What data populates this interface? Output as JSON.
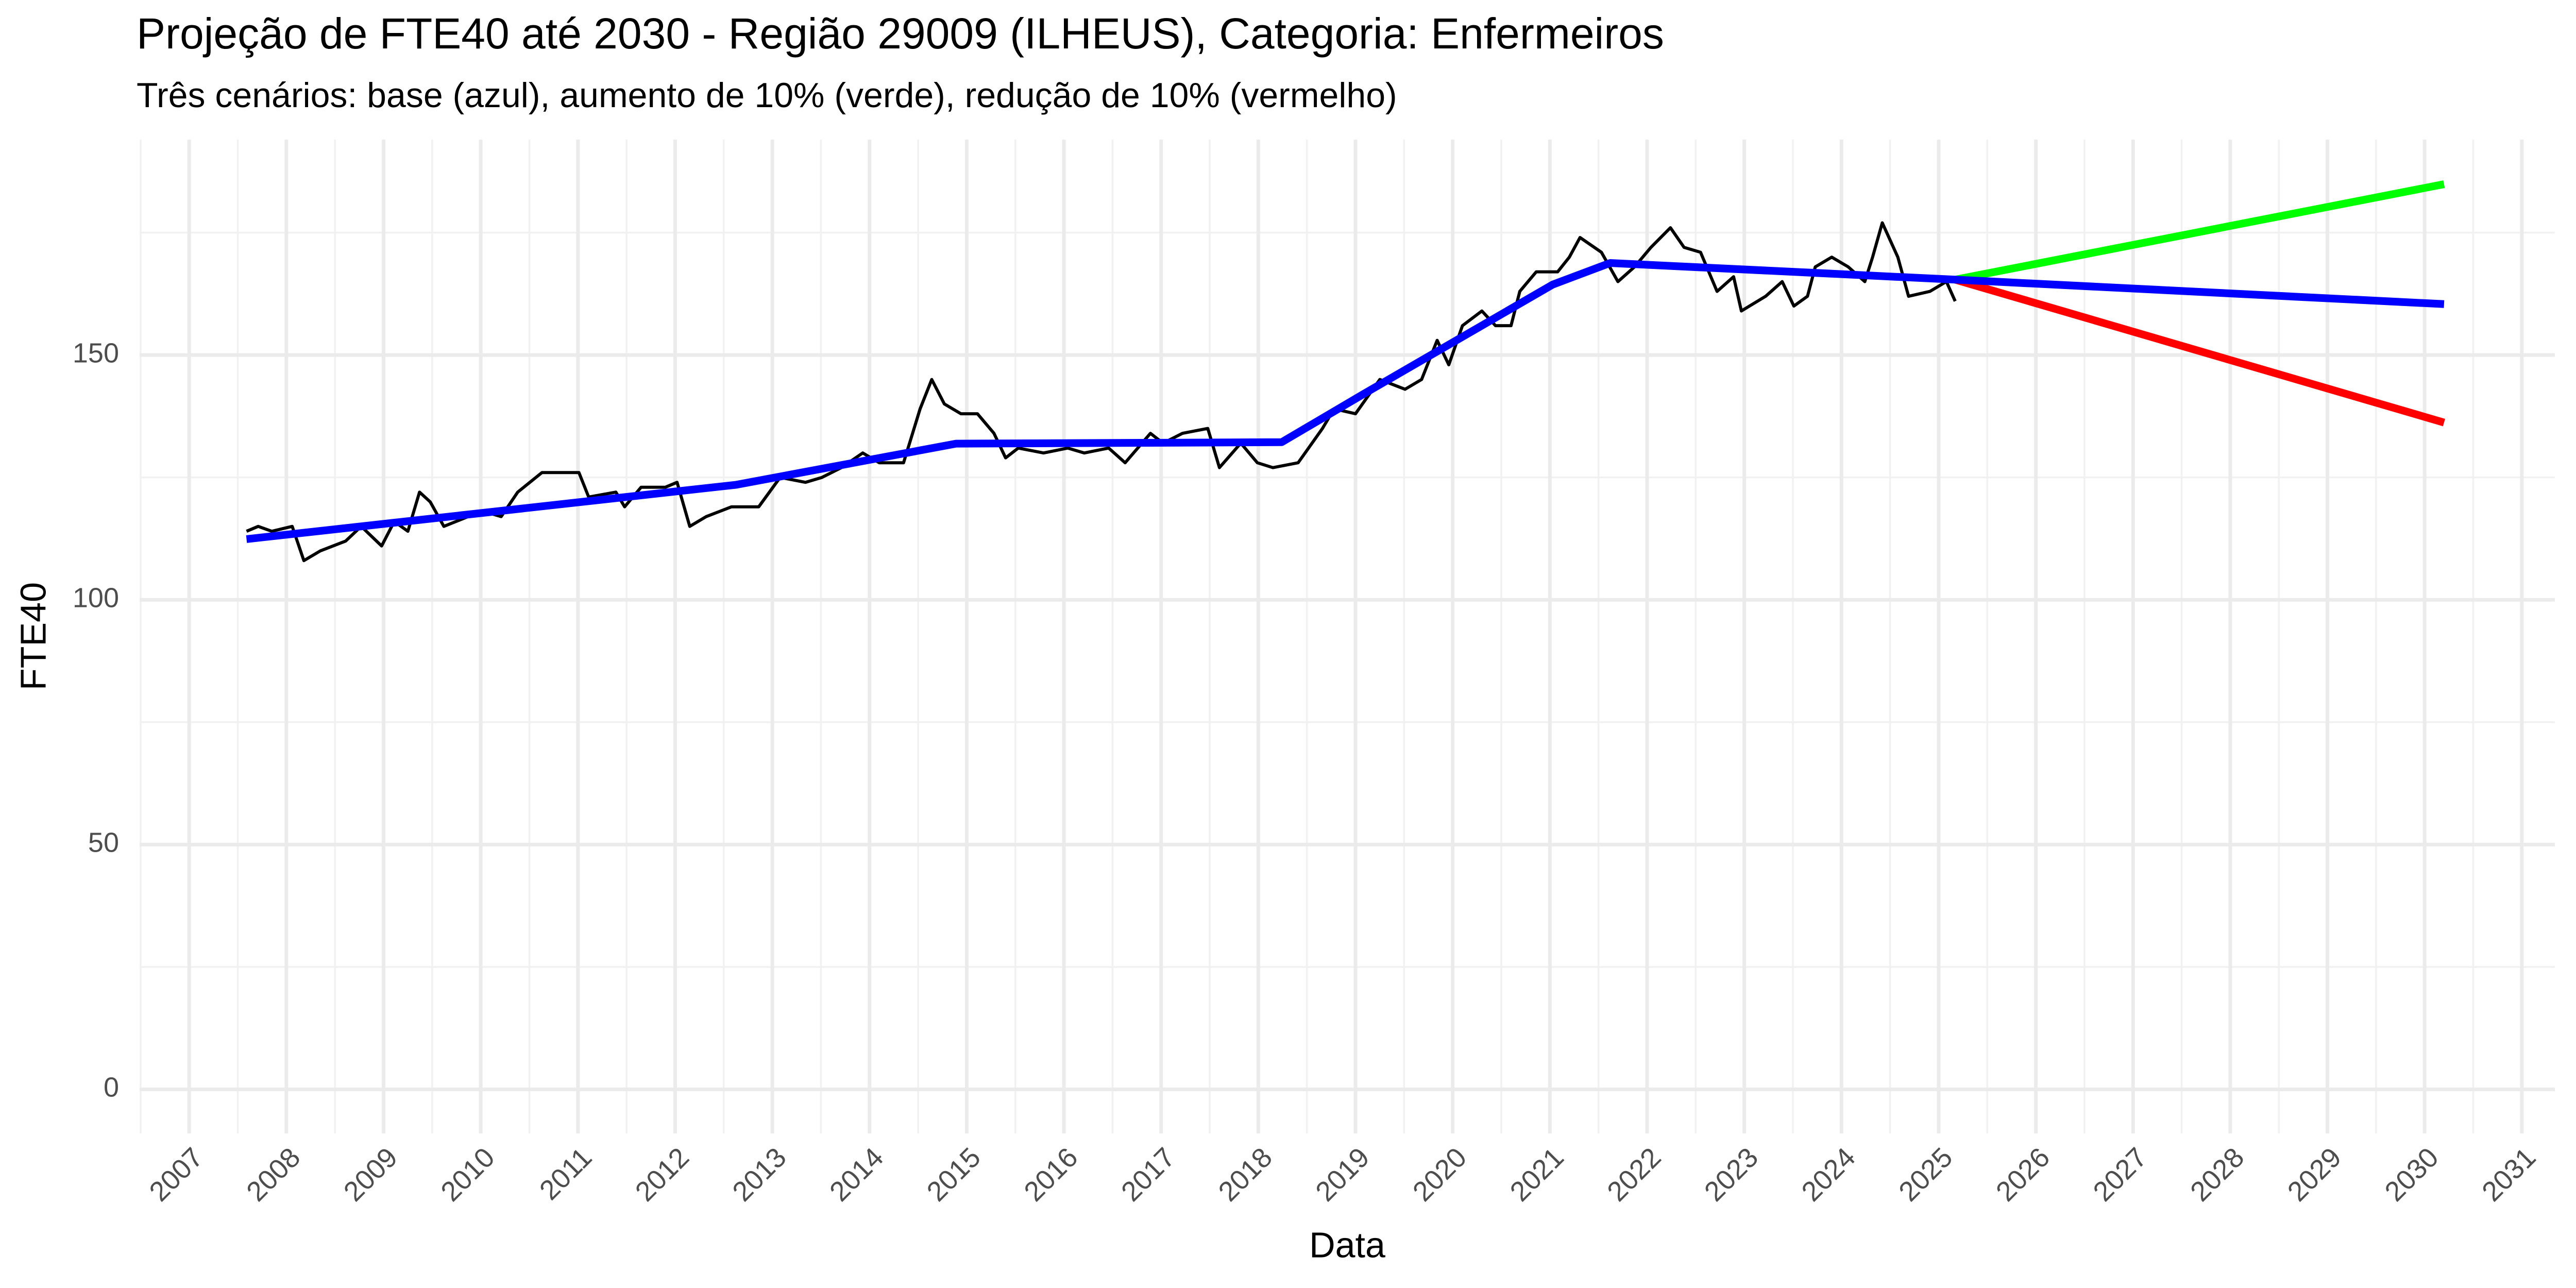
{
  "chart_data": {
    "type": "line",
    "title": "Projeção de FTE40 até 2030 - Região 29009 (ILHEUS), Categoria: Enfermeiros",
    "subtitle": "Três cenários: base (azul), aumento de 10% (verde), redução de 10% (vermelho)",
    "x_label": "Data",
    "y_label": "FTE40",
    "xlim": [
      2006.49,
      2031.34
    ],
    "ylim": [
      -9,
      194
    ],
    "xticks": [
      2007,
      2008,
      2009,
      2010,
      2011,
      2012,
      2013,
      2014,
      2015,
      2016,
      2017,
      2018,
      2019,
      2020,
      2021,
      2022,
      2023,
      2024,
      2025,
      2026,
      2027,
      2028,
      2029,
      2030,
      2031
    ],
    "yticks": [
      0,
      50,
      100,
      150
    ],
    "grid": true,
    "series": [
      {
        "color": "#000000",
        "width": 6,
        "x": [
          2007.59,
          2007.71,
          2007.85,
          2008.06,
          2008.18,
          2008.35,
          2008.61,
          2008.77,
          2008.98,
          2009.11,
          2009.25,
          2009.37,
          2009.48,
          2009.62,
          2009.87,
          2010.04,
          2010.21,
          2010.38,
          2010.63,
          2011.01,
          2011.11,
          2011.39,
          2011.48,
          2011.65,
          2011.9,
          2012.02,
          2012.15,
          2012.32,
          2012.58,
          2012.86,
          2013.08,
          2013.34,
          2013.51,
          2013.71,
          2013.93,
          2014.1,
          2014.35,
          2014.52,
          2014.64,
          2014.77,
          2014.94,
          2015.11,
          2015.28,
          2015.4,
          2015.53,
          2015.79,
          2016.04,
          2016.21,
          2016.46,
          2016.63,
          2016.89,
          2017.02,
          2017.22,
          2017.48,
          2017.6,
          2017.82,
          2017.99,
          2018.15,
          2018.41,
          2018.66,
          2018.78,
          2019.0,
          2019.25,
          2019.51,
          2019.68,
          2019.84,
          2019.96,
          2020.1,
          2020.3,
          2020.44,
          2020.6,
          2020.69,
          2020.86,
          2021.08,
          2021.2,
          2021.31,
          2021.53,
          2021.7,
          2021.87,
          2022.04,
          2022.24,
          2022.38,
          2022.55,
          2022.72,
          2022.89,
          2022.97,
          2023.22,
          2023.39,
          2023.51,
          2023.65,
          2023.73,
          2023.9,
          2024.07,
          2024.24,
          2024.32,
          2024.42,
          2024.58,
          2024.69,
          2024.91,
          2025.08,
          2025.17
        ],
        "values": [
          114,
          115,
          114,
          115,
          108,
          110,
          112,
          115,
          111,
          116,
          114,
          122,
          120,
          115,
          117,
          118,
          117,
          122,
          126,
          126,
          121,
          122,
          119,
          123,
          123,
          124,
          115,
          117,
          119,
          119,
          125,
          124,
          125,
          127,
          130,
          128,
          128,
          139,
          145,
          140,
          138,
          138,
          134,
          129,
          131,
          130,
          131,
          130,
          131,
          128,
          134,
          132,
          134,
          135,
          127,
          132,
          128,
          127,
          128,
          135,
          139,
          138,
          145,
          143,
          145,
          153,
          148,
          156,
          159,
          156,
          156,
          163,
          167,
          167,
          170,
          174,
          171,
          165,
          168,
          172,
          176,
          172,
          171,
          163,
          166,
          159,
          162,
          165,
          160,
          162,
          168,
          170,
          168,
          165,
          170,
          177,
          170,
          162,
          163,
          165,
          161
        ]
      },
      {
        "color": "#00ff00",
        "width": 15,
        "x": [
          2025.17,
          2030.2
        ],
        "values": [
          165.4,
          184.9
        ]
      },
      {
        "color": "#ff0000",
        "width": 15,
        "x": [
          2025.17,
          2030.2
        ],
        "values": [
          165.4,
          136.2
        ]
      },
      {
        "color": "#0000ff",
        "width": 15,
        "x": [
          2007.59,
          2012.63,
          2014.89,
          2018.24,
          2019.08,
          2021.03,
          2021.62,
          2025.17,
          2030.2
        ],
        "values": [
          112.4,
          123.5,
          131.9,
          132.2,
          142,
          164.4,
          168.8,
          165.4,
          160.4
        ]
      }
    ]
  }
}
